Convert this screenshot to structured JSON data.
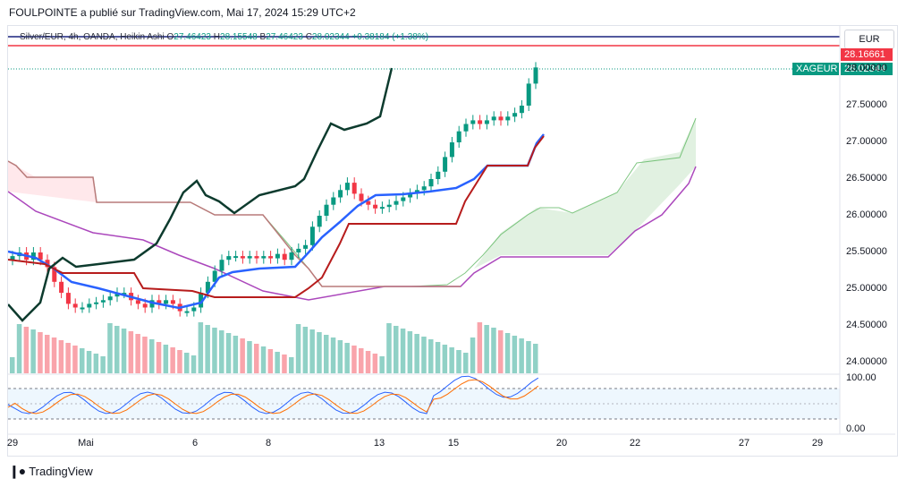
{
  "header": {
    "text": "FOULPOINTE a publié sur TradingView.com, Mai 17, 2024 15:29 UTC+2"
  },
  "legend": {
    "symbol": "Silver/EUR, 4h, OANDA, Heikin Ashi",
    "o_label": "O",
    "o_value": "27.46423",
    "h_label": "H",
    "h_value": "28.15548",
    "b_label": "B",
    "b_value": "27.46423",
    "c_label": "C",
    "c_value": "28.02344",
    "change": "+0.38184 (+1.38%)"
  },
  "currency": "EUR",
  "price_tags": {
    "top_value": "28.16661",
    "symbol_label": "XAGEUR",
    "last_value": "28.02344"
  },
  "colors": {
    "up": "#089981",
    "down": "#f23645",
    "conversion": "#2962ff",
    "base": "#b71c1c",
    "lagging": "#0d3b2e",
    "span_a": "#4caf50",
    "span_b": "#9c27b0",
    "cloud_up": "#c8e6c9",
    "cloud_down": "#ffcdd2",
    "rsi_k": "#2962ff",
    "rsi_d": "#ff6d00"
  },
  "chart_data": {
    "type": "candlestick",
    "series_type": "Heikin Ashi",
    "y_axis": {
      "ticks": [
        "28.00000",
        "27.50000",
        "27.00000",
        "26.50000",
        "26.00000",
        "25.50000",
        "25.00000",
        "24.50000",
        "24.00000"
      ],
      "ylim": [
        23.9,
        28.35
      ]
    },
    "x_axis": {
      "ticks": [
        "29",
        "Mai",
        "6",
        "8",
        "13",
        "15",
        "20",
        "22",
        "27",
        "29"
      ]
    },
    "candles_close": [
      25.45,
      25.5,
      25.4,
      25.5,
      25.4,
      25.3,
      25.1,
      24.95,
      24.8,
      24.75,
      24.75,
      24.8,
      24.82,
      24.85,
      24.9,
      24.95,
      24.95,
      24.85,
      24.8,
      24.75,
      24.85,
      24.8,
      24.85,
      24.8,
      24.7,
      24.7,
      24.75,
      24.95,
      25.1,
      25.25,
      25.4,
      25.45,
      25.45,
      25.42,
      25.45,
      25.42,
      25.45,
      25.42,
      25.48,
      25.4,
      25.5,
      25.55,
      25.6,
      25.85,
      26.0,
      26.15,
      26.25,
      26.35,
      26.45,
      26.3,
      26.2,
      26.15,
      26.1,
      26.12,
      26.15,
      26.2,
      26.25,
      26.3,
      26.35,
      26.4,
      26.5,
      26.6,
      26.8,
      27.0,
      27.15,
      27.25,
      27.3,
      27.25,
      27.3,
      27.35,
      27.3,
      27.35,
      27.4,
      27.5,
      27.8,
      28.02
    ],
    "volume_bar_count": 76,
    "ichimoku": {
      "conversion_line": true,
      "base_line": true,
      "lagging_span": true,
      "leading_span_a": true,
      "leading_span_b": true
    },
    "oscillator": {
      "type": "Stochastic RSI",
      "upper_label": "100.00",
      "lower_label": "0.00"
    }
  },
  "footer": {
    "brand": "TradingView"
  }
}
